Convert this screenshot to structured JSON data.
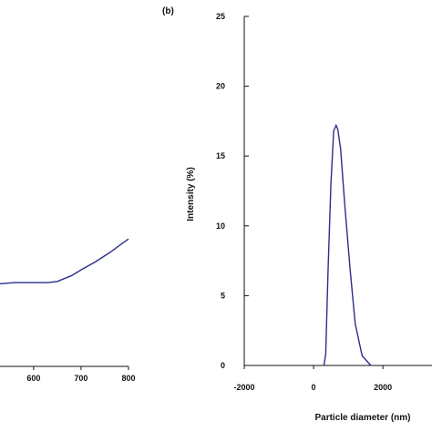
{
  "chart_data": [
    {
      "type": "line",
      "title": "",
      "xlabel": "",
      "ylabel": "",
      "xlim": [
        510,
        800
      ],
      "ylim": [
        0,
        10
      ],
      "x_ticks": [
        600,
        700,
        800
      ],
      "grid": false,
      "series": [
        {
          "color": "#2b2f8a",
          "x": [
            510,
            530,
            560,
            600,
            630,
            650,
            680,
            700,
            730,
            760,
            800
          ],
          "y": [
            3.6,
            3.6,
            3.65,
            3.65,
            3.65,
            3.7,
            3.95,
            4.2,
            4.55,
            4.95,
            5.55
          ]
        }
      ]
    },
    {
      "type": "line",
      "panel_label": "(b)",
      "title": "",
      "xlabel": "Particle diameter (nm)",
      "ylabel": "Intensity (%)",
      "xlim": [
        -2000,
        4100
      ],
      "ylim": [
        0,
        25
      ],
      "x_ticks": [
        -2000,
        0,
        2000
      ],
      "y_ticks": [
        0,
        5,
        10,
        15,
        20,
        25
      ],
      "grid": false,
      "series": [
        {
          "color": "#2b2f8a",
          "x": [
            300,
            350,
            420,
            500,
            580,
            650,
            700,
            780,
            900,
            1050,
            1200,
            1400,
            1650
          ],
          "y": [
            0,
            0.8,
            7,
            13,
            16.8,
            17.2,
            16.9,
            15.5,
            11.5,
            7,
            3,
            0.7,
            0
          ]
        }
      ]
    }
  ]
}
